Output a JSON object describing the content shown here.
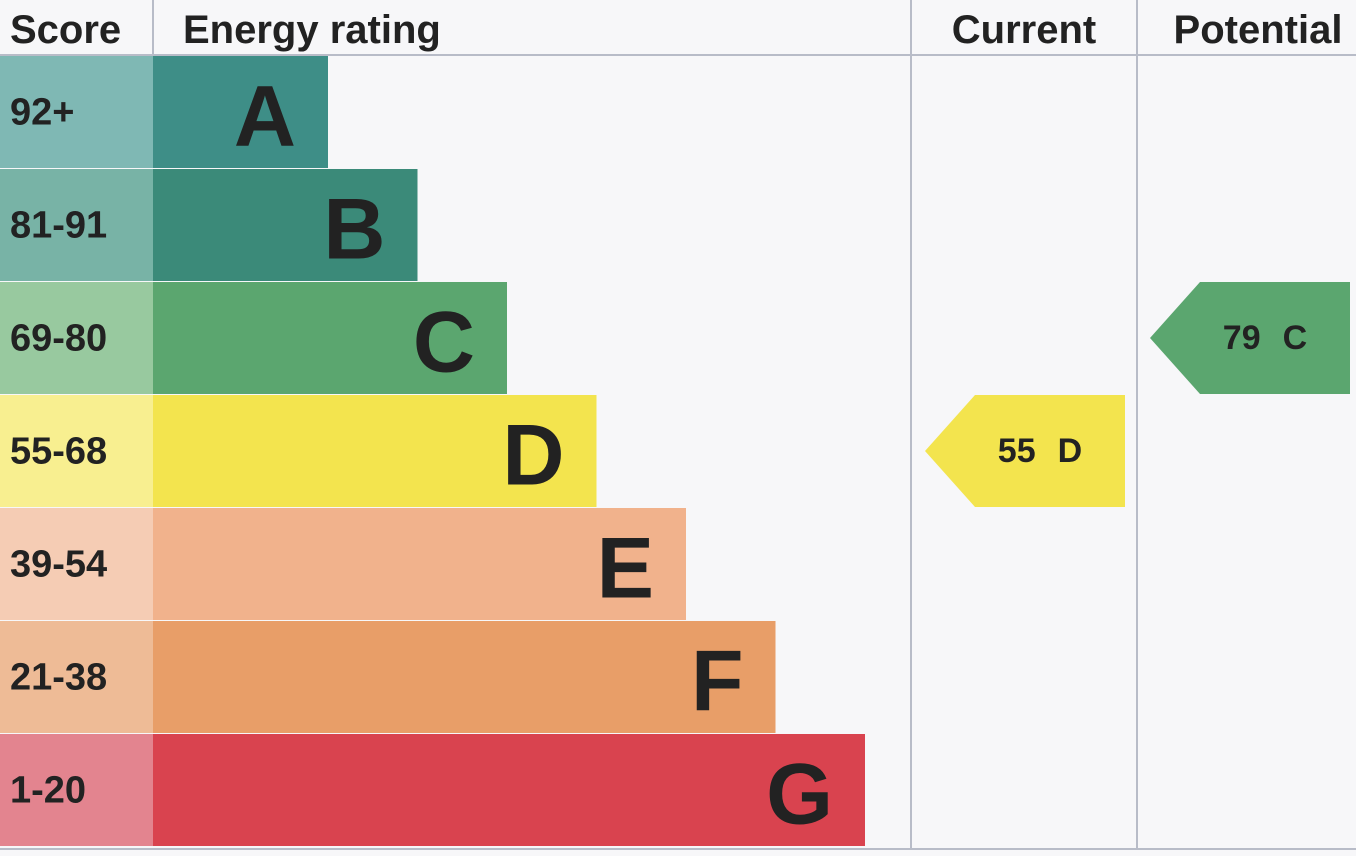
{
  "header": {
    "score": "Score",
    "energy_rating": "Energy rating",
    "current": "Current",
    "potential": "Potential"
  },
  "bands": [
    {
      "score": "92+",
      "rating": "A",
      "color": "#3e8e87",
      "light": "#7fb8b4"
    },
    {
      "score": "81-91",
      "rating": "B",
      "color": "#3b8a79",
      "light": "#78b3a6"
    },
    {
      "score": "69-80",
      "rating": "C",
      "color": "#5ba66f",
      "light": "#98c99f"
    },
    {
      "score": "55-68",
      "rating": "D",
      "color": "#f3e44e",
      "light": "#f8ef90"
    },
    {
      "score": "39-54",
      "rating": "E",
      "color": "#f1b28c",
      "light": "#f5ccb4"
    },
    {
      "score": "21-38",
      "rating": "F",
      "color": "#e89e68",
      "light": "#eebb96"
    },
    {
      "score": "1-20",
      "rating": "G",
      "color": "#d9434f",
      "light": "#e3848f"
    }
  ],
  "current": {
    "score": "55",
    "rating": "D"
  },
  "potential": {
    "score": "79",
    "rating": "C"
  }
}
